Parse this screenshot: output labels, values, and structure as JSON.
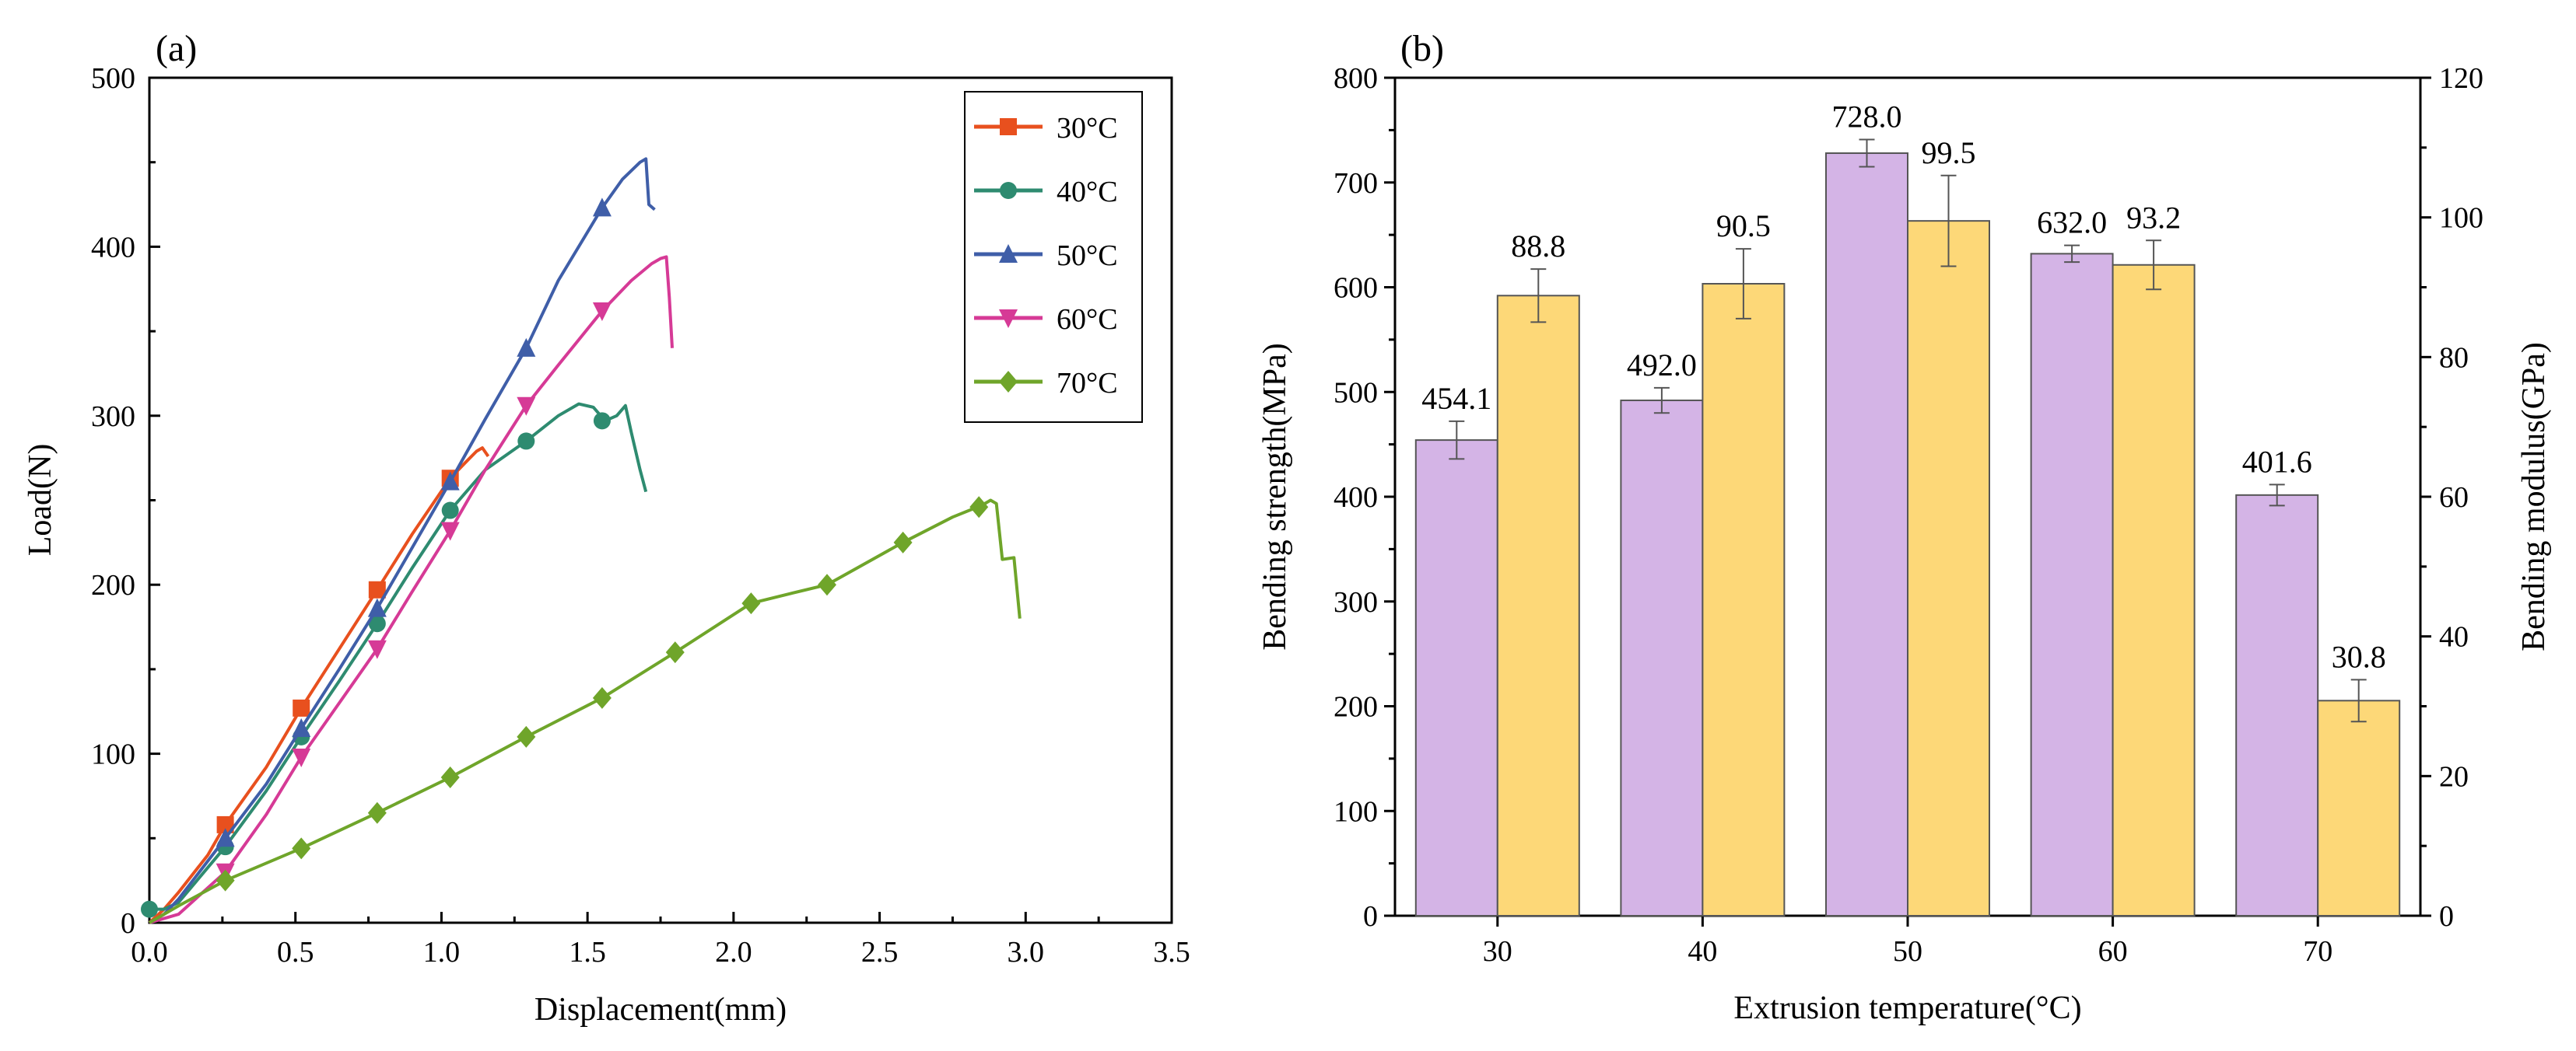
{
  "chart_data": [
    {
      "panel": "(a)",
      "type": "line",
      "xlabel": "Displacement(mm)",
      "ylabel": "Load(N)",
      "xlim": [
        0,
        3.5
      ],
      "ylim": [
        0,
        500
      ],
      "xticks": [
        "0.0",
        "0.5",
        "1.0",
        "1.5",
        "2.0",
        "2.5",
        "3.0",
        "3.5"
      ],
      "yticks": [
        "0",
        "100",
        "200",
        "300",
        "400",
        "500"
      ],
      "legend_position": "top-right",
      "series": [
        {
          "name": "30°C",
          "color": "#e8501e",
          "marker": "square",
          "points": [
            [
              0,
              0
            ],
            [
              0.05,
              8
            ],
            [
              0.1,
              18
            ],
            [
              0.2,
              40
            ],
            [
              0.26,
              58
            ],
            [
              0.4,
              92
            ],
            [
              0.52,
              127
            ],
            [
              0.65,
              162
            ],
            [
              0.78,
              197
            ],
            [
              0.9,
              230
            ],
            [
              1.03,
              263
            ],
            [
              1.08,
              272
            ],
            [
              1.12,
              279
            ],
            [
              1.14,
              281
            ],
            [
              1.16,
              276
            ]
          ],
          "markers": [
            [
              0.26,
              58
            ],
            [
              0.52,
              127
            ],
            [
              0.78,
              197
            ],
            [
              1.03,
              263
            ]
          ]
        },
        {
          "name": "40°C",
          "color": "#2e8b70",
          "marker": "circle",
          "points": [
            [
              0,
              8
            ],
            [
              0.05,
              8
            ],
            [
              0.1,
              12
            ],
            [
              0.26,
              45
            ],
            [
              0.4,
              78
            ],
            [
              0.52,
              110
            ],
            [
              0.65,
              143
            ],
            [
              0.78,
              177
            ],
            [
              0.9,
              210
            ],
            [
              1.03,
              244
            ],
            [
              1.15,
              268
            ],
            [
              1.29,
              285
            ],
            [
              1.4,
              300
            ],
            [
              1.47,
              307
            ],
            [
              1.52,
              305
            ],
            [
              1.56,
              297
            ],
            [
              1.6,
              300
            ],
            [
              1.63,
              306
            ],
            [
              1.65,
              290
            ],
            [
              1.68,
              268
            ],
            [
              1.7,
              255
            ]
          ],
          "markers": [
            [
              0,
              8
            ],
            [
              0.26,
              45
            ],
            [
              0.52,
              110
            ],
            [
              0.78,
              177
            ],
            [
              1.03,
              244
            ],
            [
              1.29,
              285
            ],
            [
              1.55,
              297
            ]
          ]
        },
        {
          "name": "50°C",
          "color": "#3f5ea8",
          "marker": "triangle-up",
          "points": [
            [
              0,
              0
            ],
            [
              0.05,
              5
            ],
            [
              0.1,
              14
            ],
            [
              0.26,
              50
            ],
            [
              0.4,
              82
            ],
            [
              0.52,
              115
            ],
            [
              0.65,
              150
            ],
            [
              0.78,
              186
            ],
            [
              0.9,
              222
            ],
            [
              1.03,
              261
            ],
            [
              1.15,
              298
            ],
            [
              1.29,
              340
            ],
            [
              1.4,
              380
            ],
            [
              1.55,
              423
            ],
            [
              1.62,
              440
            ],
            [
              1.68,
              450
            ],
            [
              1.7,
              452
            ],
            [
              1.71,
              425
            ],
            [
              1.73,
              422
            ]
          ],
          "markers": [
            [
              0.26,
              50
            ],
            [
              0.52,
              115
            ],
            [
              0.78,
              186
            ],
            [
              1.03,
              261
            ],
            [
              1.29,
              340
            ],
            [
              1.55,
              423
            ]
          ]
        },
        {
          "name": "60°C",
          "color": "#d63a96",
          "marker": "triangle-down",
          "points": [
            [
              0,
              0
            ],
            [
              0.1,
              5
            ],
            [
              0.26,
              30
            ],
            [
              0.4,
              64
            ],
            [
              0.52,
              98
            ],
            [
              0.65,
              130
            ],
            [
              0.78,
              162
            ],
            [
              0.9,
              196
            ],
            [
              1.03,
              232
            ],
            [
              1.15,
              268
            ],
            [
              1.29,
              306
            ],
            [
              1.4,
              330
            ],
            [
              1.55,
              362
            ],
            [
              1.65,
              380
            ],
            [
              1.72,
              390
            ],
            [
              1.75,
              393
            ],
            [
              1.77,
              394
            ],
            [
              1.78,
              370
            ],
            [
              1.79,
              340
            ]
          ],
          "markers": [
            [
              0.26,
              30
            ],
            [
              0.52,
              98
            ],
            [
              0.78,
              162
            ],
            [
              1.03,
              232
            ],
            [
              1.29,
              306
            ],
            [
              1.55,
              362
            ]
          ]
        },
        {
          "name": "70°C",
          "color": "#6fa52a",
          "marker": "diamond",
          "points": [
            [
              0,
              0
            ],
            [
              0.1,
              10
            ],
            [
              0.26,
              25
            ],
            [
              0.52,
              44
            ],
            [
              0.78,
              65
            ],
            [
              1.03,
              86
            ],
            [
              1.29,
              110
            ],
            [
              1.55,
              133
            ],
            [
              1.8,
              160
            ],
            [
              2.06,
              189
            ],
            [
              2.2,
              195
            ],
            [
              2.32,
              200
            ],
            [
              2.58,
              225
            ],
            [
              2.75,
              240
            ],
            [
              2.85,
              247
            ],
            [
              2.88,
              250
            ],
            [
              2.9,
              248
            ],
            [
              2.92,
              215
            ],
            [
              2.96,
              216
            ],
            [
              2.98,
              180
            ]
          ],
          "markers": [
            [
              0.26,
              25
            ],
            [
              0.52,
              44
            ],
            [
              0.78,
              65
            ],
            [
              1.03,
              86
            ],
            [
              1.29,
              110
            ],
            [
              1.55,
              133
            ],
            [
              1.8,
              160
            ],
            [
              2.06,
              189
            ],
            [
              2.32,
              200
            ],
            [
              2.58,
              225
            ],
            [
              2.84,
              246
            ]
          ]
        }
      ]
    },
    {
      "panel": "(b)",
      "type": "bar",
      "xlabel": "Extrusion temperature(°C)",
      "ylabel": "Bending strength(MPa)",
      "y2label": "Bending modulus(GPa)",
      "ylim": [
        0,
        800
      ],
      "y2lim": [
        0,
        120
      ],
      "yticks": [
        "0",
        "100",
        "200",
        "300",
        "400",
        "500",
        "600",
        "700",
        "800"
      ],
      "y2ticks": [
        "0",
        "20",
        "40",
        "60",
        "80",
        "100",
        "120"
      ],
      "categories": [
        "30",
        "40",
        "50",
        "60",
        "70"
      ],
      "series": [
        {
          "name": "Bending strength",
          "axis": "left",
          "color": "#d4b4e6",
          "values": [
            454.1,
            492.0,
            728.0,
            632.0,
            401.6
          ],
          "labels": [
            "454.1",
            "492.0",
            "728.0",
            "632.0",
            "401.6"
          ],
          "errors": [
            18,
            12,
            13,
            8,
            10
          ]
        },
        {
          "name": "Bending modulus",
          "axis": "right",
          "color": "#fdd878",
          "values": [
            88.8,
            90.5,
            99.5,
            93.2,
            30.8
          ],
          "labels": [
            "88.8",
            "90.5",
            "99.5",
            "93.2",
            "30.8"
          ],
          "errors": [
            3.8,
            5,
            6.5,
            3.5,
            3
          ]
        }
      ]
    }
  ]
}
